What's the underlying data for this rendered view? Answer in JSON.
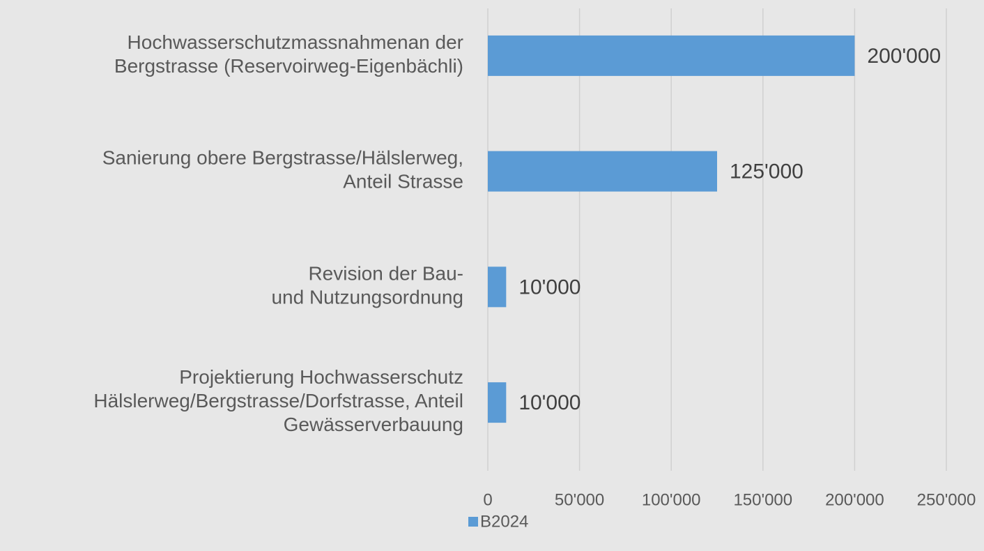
{
  "chart_data": {
    "type": "barh",
    "categories": [
      "Hochwasserschutzmassnahmenan der\nBergstrasse (Reservoirweg-Eigenbächli)",
      "Sanierung obere Bergstrasse/Hälslerweg,\nAnteil Strasse",
      "Revision der Bau-\nund Nutzungsordnung",
      "Projektierung Hochwasserschutz\nHälslerweg/Bergstrasse/Dorfstrasse, Anteil\nGewässerverbauung"
    ],
    "series": [
      {
        "name": "B2024",
        "color": "#5b9bd5",
        "values": [
          200000,
          125000,
          10000,
          10000
        ],
        "value_labels": [
          "200'000",
          "125'000",
          "10'000",
          "10'000"
        ]
      }
    ],
    "xlim": [
      0,
      250000
    ],
    "xticks": [
      0,
      {
        "value": 50000,
        "label": "50'000"
      },
      {
        "value": 100000,
        "label": "100'000"
      },
      {
        "value": 150000,
        "label": "150'000"
      },
      {
        "value": 200000,
        "label": "200'000"
      },
      {
        "value": 250000,
        "label": "250'000"
      }
    ],
    "grid": true,
    "legend": "bottom"
  }
}
